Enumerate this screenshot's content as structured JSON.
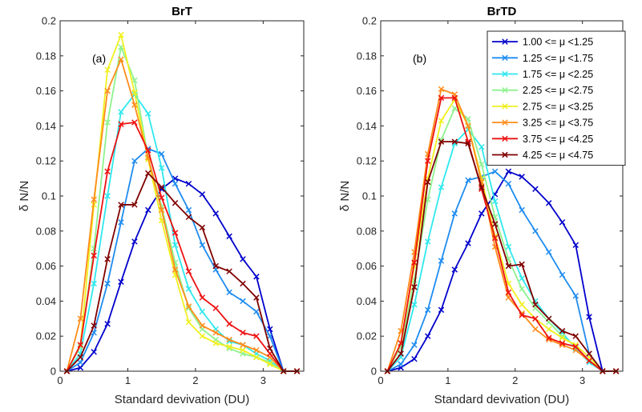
{
  "chart_data": [
    {
      "type": "line",
      "title": "BrT",
      "panel_label": "(a)",
      "xlabel": "Standard devivation (DU)",
      "ylabel": "δ N/N",
      "xlim": [
        0,
        3.6
      ],
      "ylim": [
        0,
        0.2
      ],
      "xticks": [
        0,
        1,
        2,
        3
      ],
      "yticks": [
        0,
        0.02,
        0.04,
        0.06,
        0.08,
        0.1,
        0.12,
        0.14,
        0.16,
        0.18,
        0.2
      ],
      "grid": false,
      "marker": "x",
      "x": [
        0.1,
        0.3,
        0.5,
        0.7,
        0.9,
        1.1,
        1.3,
        1.5,
        1.7,
        1.9,
        2.1,
        2.3,
        2.5,
        2.7,
        2.9,
        3.1,
        3.3,
        3.5
      ],
      "series": [
        {
          "name": "1.00 <= μ <1.25",
          "color": "#0000cc",
          "values": [
            0,
            0.002,
            0.011,
            0.027,
            0.051,
            0.074,
            0.092,
            0.104,
            0.11,
            0.107,
            0.101,
            0.09,
            0.077,
            0.064,
            0.054,
            0.024,
            0,
            0
          ]
        },
        {
          "name": "1.25 <= μ <1.75",
          "color": "#1e8cf0",
          "values": [
            0,
            0.005,
            0.022,
            0.05,
            0.085,
            0.12,
            0.127,
            0.124,
            0.107,
            0.092,
            0.072,
            0.058,
            0.045,
            0.04,
            0.034,
            0.02,
            0,
            0
          ]
        },
        {
          "name": "1.75 <= μ <2.25",
          "color": "#2ee8ee",
          "values": [
            0,
            0.01,
            0.05,
            0.1,
            0.148,
            0.158,
            0.147,
            0.116,
            0.072,
            0.047,
            0.034,
            0.024,
            0.017,
            0.015,
            0.01,
            0.006,
            0,
            0
          ]
        },
        {
          "name": "2.25 <= μ <2.75",
          "color": "#8ef28e",
          "values": [
            0,
            0.014,
            0.07,
            0.142,
            0.185,
            0.166,
            0.122,
            0.094,
            0.062,
            0.036,
            0.024,
            0.018,
            0.013,
            0.01,
            0.008,
            0.005,
            0,
            0
          ]
        },
        {
          "name": "2.75 <= μ <3.25",
          "color": "#f0f020",
          "values": [
            0,
            0.015,
            0.095,
            0.172,
            0.192,
            0.159,
            0.121,
            0.086,
            0.055,
            0.028,
            0.02,
            0.016,
            0.014,
            0.012,
            0.008,
            0.004,
            0,
            0
          ]
        },
        {
          "name": "3.25 <= μ <3.75",
          "color": "#ff8c1a",
          "values": [
            0,
            0.03,
            0.098,
            0.16,
            0.178,
            0.152,
            0.122,
            0.092,
            0.058,
            0.037,
            0.026,
            0.022,
            0.018,
            0.015,
            0.012,
            0.008,
            0,
            0
          ]
        },
        {
          "name": "3.75 <= μ <4.25",
          "color": "#ee1111",
          "values": [
            0,
            0.015,
            0.066,
            0.114,
            0.141,
            0.142,
            0.126,
            0.099,
            0.079,
            0.057,
            0.042,
            0.036,
            0.027,
            0.022,
            0.02,
            0.01,
            0,
            0
          ]
        },
        {
          "name": "4.25 <= μ <4.75",
          "color": "#800000",
          "values": [
            0,
            0.008,
            0.026,
            0.064,
            0.095,
            0.095,
            0.113,
            0.105,
            0.096,
            0.088,
            0.082,
            0.06,
            0.057,
            0.05,
            0.042,
            0.013,
            0,
            0
          ]
        }
      ]
    },
    {
      "type": "line",
      "title": "BrTD",
      "panel_label": "(b)",
      "xlabel": "Standard devivation (DU)",
      "ylabel": "δ N/N",
      "xlim": [
        0,
        3.6
      ],
      "ylim": [
        0,
        0.2
      ],
      "xticks": [
        0,
        1,
        2,
        3
      ],
      "yticks": [
        0,
        0.02,
        0.04,
        0.06,
        0.08,
        0.1,
        0.12,
        0.14,
        0.16,
        0.18,
        0.2
      ],
      "grid": false,
      "marker": "x",
      "legend_position": "top-right",
      "x": [
        0.1,
        0.3,
        0.5,
        0.7,
        0.9,
        1.1,
        1.3,
        1.5,
        1.7,
        1.9,
        2.1,
        2.3,
        2.5,
        2.7,
        2.9,
        3.1,
        3.3,
        3.5
      ],
      "series": [
        {
          "name": "1.00 <= μ <1.25",
          "color": "#0000cc",
          "values": [
            0,
            0.002,
            0.007,
            0.02,
            0.035,
            0.058,
            0.073,
            0.09,
            0.101,
            0.114,
            0.111,
            0.104,
            0.096,
            0.085,
            0.072,
            0.031,
            0,
            0
          ]
        },
        {
          "name": "1.25 <= μ <1.75",
          "color": "#1e8cf0",
          "values": [
            0,
            0.004,
            0.015,
            0.035,
            0.063,
            0.09,
            0.109,
            0.111,
            0.114,
            0.107,
            0.092,
            0.08,
            0.068,
            0.055,
            0.043,
            0.01,
            0,
            0
          ]
        },
        {
          "name": "1.75 <= μ <2.25",
          "color": "#2ee8ee",
          "values": [
            0,
            0.008,
            0.038,
            0.074,
            0.105,
            0.13,
            0.138,
            0.128,
            0.097,
            0.071,
            0.053,
            0.04,
            0.03,
            0.022,
            0.013,
            0.005,
            0,
            0
          ]
        },
        {
          "name": "2.25 <= μ <2.75",
          "color": "#8ef28e",
          "values": [
            0,
            0.014,
            0.052,
            0.098,
            0.132,
            0.15,
            0.144,
            0.118,
            0.088,
            0.064,
            0.047,
            0.036,
            0.028,
            0.02,
            0.014,
            0.006,
            0,
            0
          ]
        },
        {
          "name": "2.75 <= μ <3.25",
          "color": "#f0f020",
          "values": [
            0,
            0.016,
            0.06,
            0.11,
            0.143,
            0.155,
            0.14,
            0.11,
            0.077,
            0.05,
            0.038,
            0.03,
            0.024,
            0.019,
            0.015,
            0.008,
            0,
            0
          ]
        },
        {
          "name": "3.25 <= μ <3.75",
          "color": "#ff8c1a",
          "values": [
            0,
            0.023,
            0.068,
            0.124,
            0.161,
            0.158,
            0.14,
            0.108,
            0.071,
            0.042,
            0.033,
            0.024,
            0.018,
            0.015,
            0.012,
            0.006,
            0,
            0
          ]
        },
        {
          "name": "3.75 <= μ <4.25",
          "color": "#ee1111",
          "values": [
            0,
            0.016,
            0.062,
            0.12,
            0.156,
            0.156,
            0.131,
            0.104,
            0.076,
            0.045,
            0.032,
            0.03,
            0.019,
            0.016,
            0.014,
            0.006,
            0,
            0
          ]
        },
        {
          "name": "4.25 <= μ <4.75",
          "color": "#800000",
          "values": [
            0,
            0.01,
            0.048,
            0.108,
            0.131,
            0.131,
            0.13,
            0.105,
            0.084,
            0.06,
            0.061,
            0.038,
            0.03,
            0.023,
            0.02,
            0.01,
            0,
            0
          ]
        }
      ]
    }
  ]
}
